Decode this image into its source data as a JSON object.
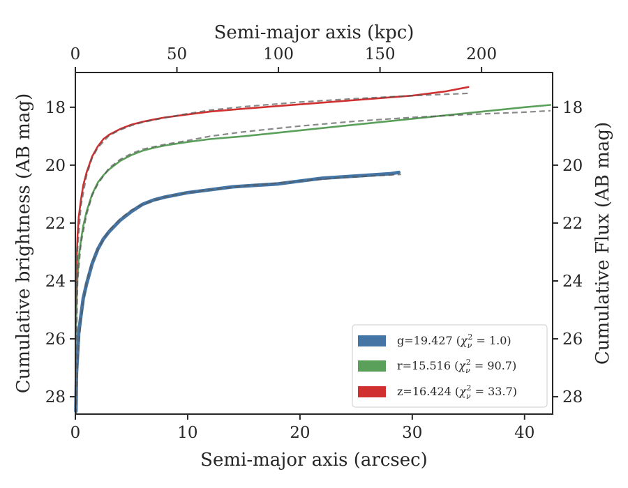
{
  "chart_data": {
    "type": "line",
    "title": "",
    "xlabel": "Semi-major axis (arcsec)",
    "xlabel_top": "Semi-major axis (kpc)",
    "ylabel": "Cumulative brightness (AB mag)",
    "ylabel_right": "Cumulative Flux (AB mag)",
    "xlim": [
      0,
      42.5
    ],
    "xlim_top": [
      0,
      235
    ],
    "ylim": [
      28.6,
      16.8
    ],
    "y_inverted": true,
    "grid": false,
    "legend_position": "lower-right",
    "x_ticks": [
      0,
      10,
      20,
      30,
      40
    ],
    "x_ticks_top": [
      0,
      50,
      100,
      150,
      200
    ],
    "y_ticks": [
      18,
      20,
      22,
      24,
      26,
      28
    ],
    "series": [
      {
        "name": "g",
        "legend": {
          "prefix": "g=19.427 (",
          "chi": "χ",
          "sub": "ν",
          "sup": "2",
          "suffix": " = 1.0)"
        },
        "color": "#4575a4",
        "x": [
          0.05,
          0.1,
          0.2,
          0.3,
          0.5,
          0.7,
          1.0,
          1.5,
          2,
          2.5,
          3,
          4,
          5,
          6,
          7,
          8,
          10,
          12,
          14,
          16,
          18,
          20,
          22,
          24,
          26,
          28,
          28.8
        ],
        "y": [
          28.5,
          27.2,
          26.5,
          25.8,
          25.2,
          24.6,
          24.1,
          23.4,
          22.9,
          22.55,
          22.3,
          21.9,
          21.6,
          21.35,
          21.2,
          21.1,
          20.95,
          20.85,
          20.75,
          20.7,
          20.65,
          20.55,
          20.45,
          20.4,
          20.35,
          20.3,
          20.25
        ],
        "fit_x": [
          0.05,
          0.2,
          0.5,
          1.0,
          1.5,
          2,
          3,
          4,
          5,
          6,
          8,
          10,
          12,
          15,
          18,
          20,
          23,
          26,
          29
        ],
        "fit_y": [
          28.6,
          26.8,
          25.3,
          24.0,
          23.35,
          22.9,
          22.25,
          21.85,
          21.55,
          21.35,
          21.1,
          20.95,
          20.85,
          20.72,
          20.62,
          20.55,
          20.45,
          20.38,
          20.32
        ]
      },
      {
        "name": "r",
        "legend": {
          "prefix": "r=15.516 (",
          "chi": "χ",
          "sub": "ν",
          "sup": "2",
          "suffix": " = 90.7)"
        },
        "color": "#5aa05a",
        "x": [
          0.05,
          0.1,
          0.2,
          0.3,
          0.5,
          0.7,
          1.0,
          1.5,
          2,
          2.5,
          3,
          4,
          5,
          6,
          7,
          8,
          10,
          12,
          15,
          20,
          25,
          30,
          35,
          40,
          42.3
        ],
        "y": [
          26.2,
          24.8,
          23.8,
          23.2,
          22.6,
          22.1,
          21.6,
          21.0,
          20.6,
          20.35,
          20.15,
          19.85,
          19.65,
          19.5,
          19.4,
          19.32,
          19.2,
          19.1,
          19.0,
          18.8,
          18.6,
          18.4,
          18.2,
          18.0,
          17.92
        ],
        "fit_x": [
          0.05,
          0.2,
          0.5,
          1.0,
          1.5,
          2,
          3,
          4,
          5,
          6,
          8,
          10,
          12,
          15,
          20,
          25,
          30,
          35,
          40,
          42.3
        ],
        "fit_y": [
          27.0,
          24.0,
          22.7,
          21.7,
          21.05,
          20.65,
          20.1,
          19.8,
          19.6,
          19.45,
          19.28,
          19.15,
          19.0,
          18.85,
          18.65,
          18.48,
          18.35,
          18.25,
          18.17,
          18.12
        ]
      },
      {
        "name": "z",
        "legend": {
          "prefix": "z=16.424 (",
          "chi": "χ",
          "sub": "ν",
          "sup": "2",
          "suffix": " = 33.7)"
        },
        "color": "#d03030",
        "x": [
          0.05,
          0.1,
          0.2,
          0.3,
          0.5,
          0.7,
          1.0,
          1.5,
          2,
          2.5,
          3,
          4,
          5,
          6,
          7,
          8,
          10,
          12,
          15,
          20,
          25,
          30,
          33,
          35
        ],
        "y": [
          24.9,
          23.4,
          22.4,
          21.8,
          21.2,
          20.7,
          20.25,
          19.7,
          19.35,
          19.1,
          18.95,
          18.75,
          18.6,
          18.5,
          18.42,
          18.35,
          18.25,
          18.15,
          18.05,
          17.9,
          17.75,
          17.6,
          17.45,
          17.3
        ],
        "fit_x": [
          0.05,
          0.2,
          0.5,
          1.0,
          1.5,
          2,
          3,
          4,
          5,
          6,
          8,
          10,
          12,
          15,
          20,
          25,
          30,
          35
        ],
        "fit_y": [
          25.8,
          22.9,
          21.4,
          20.35,
          19.75,
          19.4,
          18.98,
          18.78,
          18.63,
          18.52,
          18.36,
          18.22,
          18.1,
          17.98,
          17.82,
          17.7,
          17.6,
          17.52
        ]
      }
    ]
  }
}
